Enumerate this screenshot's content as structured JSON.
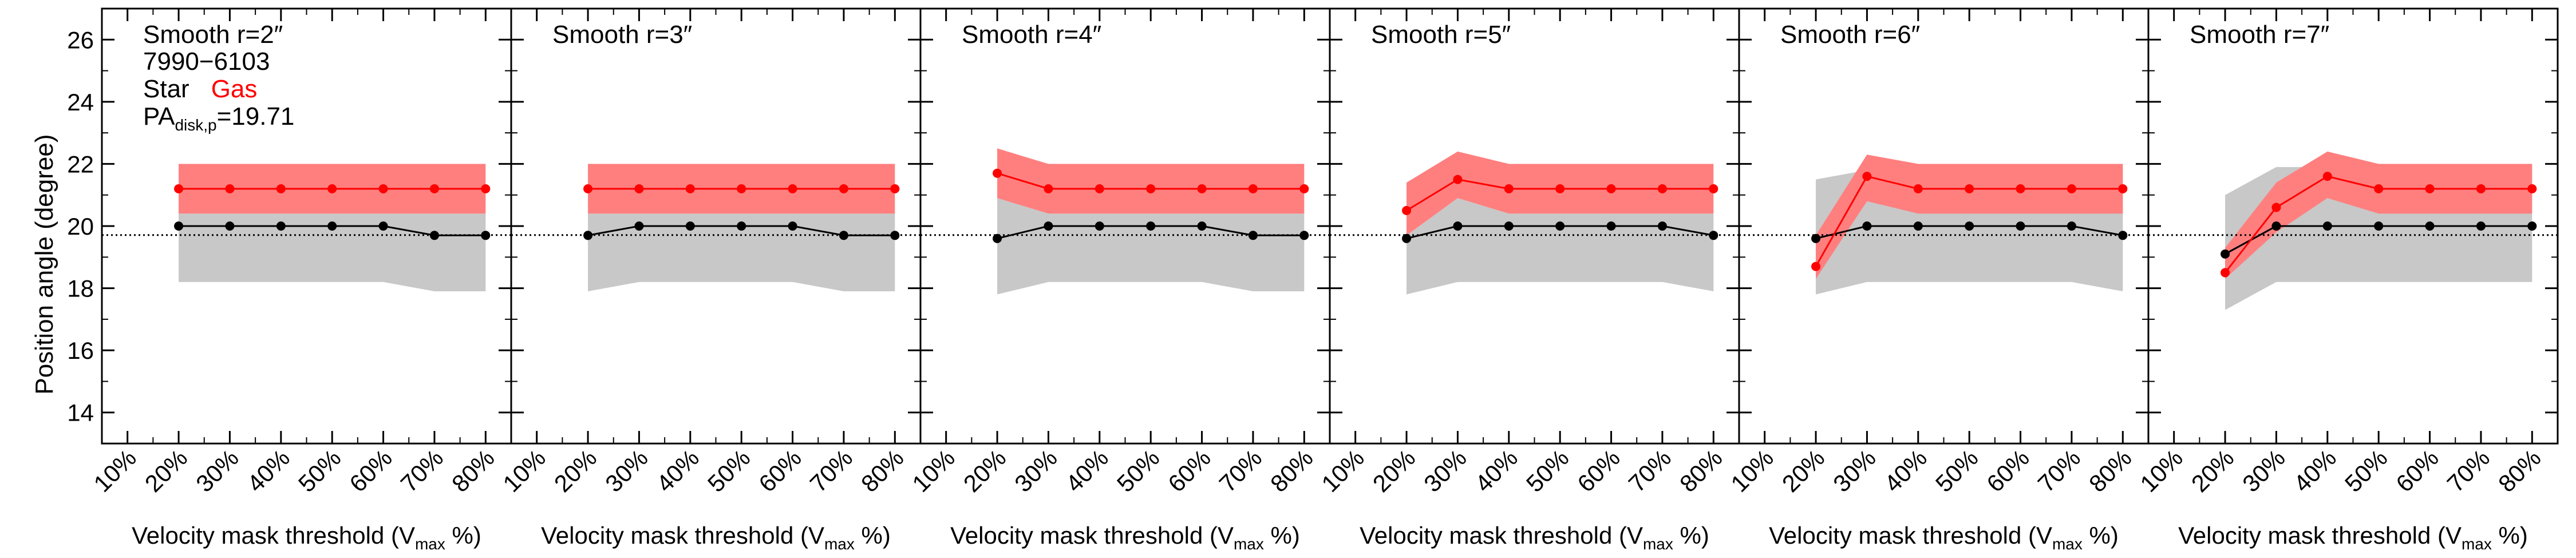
{
  "figure": {
    "ylabel": "Position angle (degree)",
    "xlabel_prefix": "Velocity mask threshold (V",
    "xlabel_sub": "max",
    "xlabel_suffix": " %)",
    "info_id": "7990−6103",
    "legend_star": "Star",
    "legend_gas": "Gas",
    "pa_prefix": "PA",
    "pa_sub": "disk,p",
    "pa_value": "=19.71"
  },
  "colors": {
    "star_line": "#000000",
    "star_band": "#c8c8c8",
    "gas_line": "#ff0000",
    "gas_band": "#ff7f7f",
    "reference_line": "#000000"
  },
  "chart_data": {
    "type": "line",
    "layout": "6 panels in a row sharing the y-axis",
    "x_categories": [
      "10%",
      "20%",
      "30%",
      "40%",
      "50%",
      "60%",
      "70%",
      "80%"
    ],
    "y_ticks": [
      14,
      16,
      18,
      20,
      22,
      24,
      26
    ],
    "ylim": [
      13,
      27
    ],
    "reference_line": {
      "y": 19.71,
      "style": "dotted"
    },
    "panels": [
      {
        "title": "Smooth r=2″",
        "star": {
          "x": [
            20,
            30,
            40,
            50,
            60,
            70,
            80
          ],
          "y": [
            20.0,
            20.0,
            20.0,
            20.0,
            20.0,
            19.7,
            19.7
          ],
          "band_low": [
            18.2,
            18.2,
            18.2,
            18.2,
            18.2,
            17.9,
            17.9
          ],
          "band_high": [
            20.4,
            20.4,
            20.4,
            20.4,
            20.4,
            20.4,
            20.4
          ]
        },
        "gas": {
          "x": [
            20,
            30,
            40,
            50,
            60,
            70,
            80
          ],
          "y": [
            21.2,
            21.2,
            21.2,
            21.2,
            21.2,
            21.2,
            21.2
          ],
          "band_low": [
            20.4,
            20.4,
            20.4,
            20.4,
            20.4,
            20.4,
            20.4
          ],
          "band_high": [
            22.0,
            22.0,
            22.0,
            22.0,
            22.0,
            22.0,
            22.0
          ]
        }
      },
      {
        "title": "Smooth r=3″",
        "star": {
          "x": [
            20,
            30,
            40,
            50,
            60,
            70,
            80
          ],
          "y": [
            19.7,
            20.0,
            20.0,
            20.0,
            20.0,
            19.7,
            19.7
          ],
          "band_low": [
            17.9,
            18.2,
            18.2,
            18.2,
            18.2,
            17.9,
            17.9
          ],
          "band_high": [
            20.4,
            20.4,
            20.4,
            20.4,
            20.4,
            20.4,
            20.4
          ]
        },
        "gas": {
          "x": [
            20,
            30,
            40,
            50,
            60,
            70,
            80
          ],
          "y": [
            21.2,
            21.2,
            21.2,
            21.2,
            21.2,
            21.2,
            21.2
          ],
          "band_low": [
            20.4,
            20.4,
            20.4,
            20.4,
            20.4,
            20.4,
            20.4
          ],
          "band_high": [
            22.0,
            22.0,
            22.0,
            22.0,
            22.0,
            22.0,
            22.0
          ]
        }
      },
      {
        "title": "Smooth r=4″",
        "star": {
          "x": [
            20,
            30,
            40,
            50,
            60,
            70,
            80
          ],
          "y": [
            19.6,
            20.0,
            20.0,
            20.0,
            20.0,
            19.7,
            19.7
          ],
          "band_low": [
            17.8,
            18.2,
            18.2,
            18.2,
            18.2,
            17.9,
            17.9
          ],
          "band_high": [
            20.9,
            20.4,
            20.4,
            20.4,
            20.4,
            20.4,
            20.4
          ]
        },
        "gas": {
          "x": [
            20,
            30,
            40,
            50,
            60,
            70,
            80
          ],
          "y": [
            21.7,
            21.2,
            21.2,
            21.2,
            21.2,
            21.2,
            21.2
          ],
          "band_low": [
            20.9,
            20.4,
            20.4,
            20.4,
            20.4,
            20.4,
            20.4
          ],
          "band_high": [
            22.5,
            22.0,
            22.0,
            22.0,
            22.0,
            22.0,
            22.0
          ]
        }
      },
      {
        "title": "Smooth r=5″",
        "star": {
          "x": [
            20,
            30,
            40,
            50,
            60,
            70,
            80
          ],
          "y": [
            19.6,
            20.0,
            20.0,
            20.0,
            20.0,
            20.0,
            19.7
          ],
          "band_low": [
            17.8,
            18.2,
            18.2,
            18.2,
            18.2,
            18.2,
            17.9
          ],
          "band_high": [
            19.7,
            20.9,
            20.4,
            20.4,
            20.4,
            20.4,
            20.4
          ]
        },
        "gas": {
          "x": [
            20,
            30,
            40,
            50,
            60,
            70,
            80
          ],
          "y": [
            20.5,
            21.5,
            21.2,
            21.2,
            21.2,
            21.2,
            21.2
          ],
          "band_low": [
            19.7,
            20.9,
            20.4,
            20.4,
            20.4,
            20.4,
            20.4
          ],
          "band_high": [
            21.4,
            22.4,
            22.0,
            22.0,
            22.0,
            22.0,
            22.0
          ]
        }
      },
      {
        "title": "Smooth r=6″",
        "star": {
          "x": [
            20,
            30,
            40,
            50,
            60,
            70,
            80
          ],
          "y": [
            19.6,
            20.0,
            20.0,
            20.0,
            20.0,
            20.0,
            19.7
          ],
          "band_low": [
            17.8,
            18.2,
            18.2,
            18.2,
            18.2,
            18.2,
            17.9
          ],
          "band_high": [
            21.5,
            21.8,
            21.8,
            21.8,
            21.8,
            21.8,
            21.8
          ]
        },
        "gas": {
          "x": [
            20,
            30,
            40,
            50,
            60,
            70,
            80
          ],
          "y": [
            18.7,
            21.6,
            21.2,
            21.2,
            21.2,
            21.2,
            21.2
          ],
          "band_low": [
            18.3,
            20.8,
            20.4,
            20.4,
            20.4,
            20.4,
            20.4
          ],
          "band_high": [
            19.7,
            22.3,
            22.0,
            22.0,
            22.0,
            22.0,
            22.0
          ]
        }
      },
      {
        "title": "Smooth r=7″",
        "star": {
          "x": [
            20,
            30,
            40,
            50,
            60,
            70,
            80
          ],
          "y": [
            19.1,
            20.0,
            20.0,
            20.0,
            20.0,
            20.0,
            20.0
          ],
          "band_low": [
            17.3,
            18.2,
            18.2,
            18.2,
            18.2,
            18.2,
            18.2
          ],
          "band_high": [
            21.0,
            21.9,
            21.9,
            21.9,
            21.9,
            21.9,
            21.9
          ]
        },
        "gas": {
          "x": [
            20,
            30,
            40,
            50,
            60,
            70,
            80
          ],
          "y": [
            18.5,
            20.6,
            21.6,
            21.2,
            21.2,
            21.2,
            21.2
          ],
          "band_low": [
            18.3,
            19.8,
            20.9,
            20.4,
            20.4,
            20.4,
            20.4
          ],
          "band_high": [
            19.3,
            21.4,
            22.4,
            22.0,
            22.0,
            22.0,
            22.0
          ]
        }
      }
    ]
  }
}
